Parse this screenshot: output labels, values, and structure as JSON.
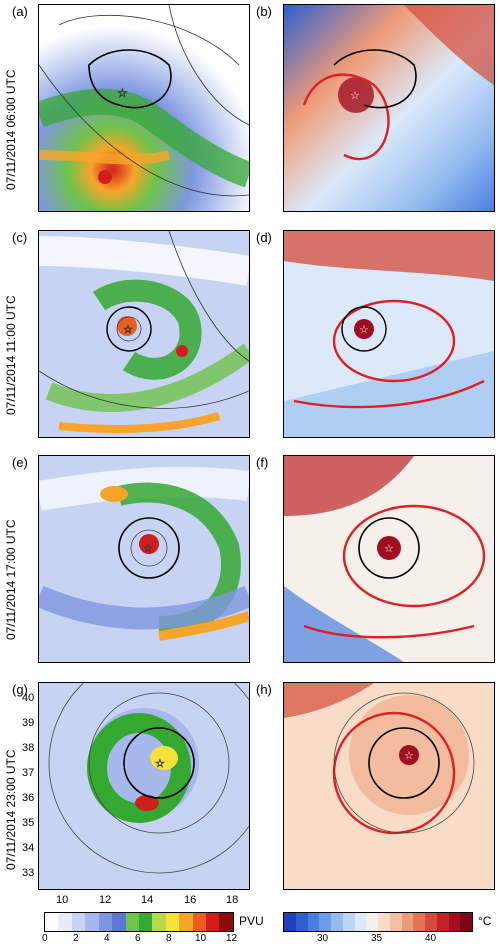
{
  "rows": [
    {
      "time": "07/11/2014 06:00 UTC",
      "left_label": "(a)",
      "right_label": "(b)"
    },
    {
      "time": "07/11/2014 11:00 UTC",
      "left_label": "(c)",
      "right_label": "(d)"
    },
    {
      "time": "07/11/2014 17:00 UTC",
      "left_label": "(e)",
      "right_label": "(f)"
    },
    {
      "time": "07/11/2014 23:00 UTC",
      "left_label": "(g)",
      "right_label": "(h)"
    }
  ],
  "axes": {
    "lat_ticks": [
      "40",
      "39",
      "38",
      "37",
      "36",
      "35",
      "34",
      "33"
    ],
    "lon_ticks": [
      "10",
      "12",
      "14",
      "16",
      "18"
    ]
  },
  "colorbar_left": {
    "unit": "PVU",
    "ticks": [
      "0",
      "2",
      "4",
      "6",
      "8",
      "10",
      "12"
    ],
    "colors": [
      "#ffffff",
      "#e6ecfa",
      "#c7d3f3",
      "#a6b8ec",
      "#7f97e0",
      "#5b78d4",
      "#6fc24a",
      "#35a832",
      "#b8d94a",
      "#f4e23c",
      "#f7a52a",
      "#ec5d20",
      "#d21d1d",
      "#8a0c0c"
    ]
  },
  "colorbar_right": {
    "unit": "°C",
    "ticks": [
      "30",
      "35",
      "40"
    ],
    "colors": [
      "#1f3fbf",
      "#2d5fd1",
      "#4a7fdf",
      "#6d9de8",
      "#93bcef",
      "#b9d6f5",
      "#dbe9fa",
      "#f5f0ea",
      "#f8dcc7",
      "#f4bea0",
      "#ef9b78",
      "#e47455",
      "#d44a3a",
      "#c0242a",
      "#a00f20",
      "#7d0517"
    ]
  }
}
